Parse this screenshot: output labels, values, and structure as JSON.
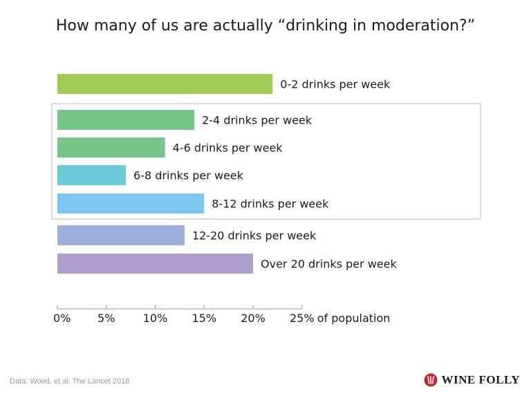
{
  "chart_data": {
    "type": "bar",
    "orientation": "horizontal",
    "title": "How many of us are actually “drinking in moderation?”",
    "categories": [
      "0-2 drinks per week",
      "2-4 drinks per week",
      "4-6 drinks per week",
      "6-8 drinks per week",
      "8-12 drinks per week",
      "12-20 drinks per week",
      "Over 20 drinks per week"
    ],
    "values": [
      22,
      14,
      11,
      7,
      15,
      13,
      20
    ],
    "colors": [
      "#a1cc55",
      "#77c58b",
      "#77c58b",
      "#6ccbd6",
      "#7cc6ef",
      "#9eb0de",
      "#ae9fcf"
    ],
    "xlim": [
      0,
      25
    ],
    "xticks": [
      0,
      5,
      10,
      15,
      20,
      25
    ],
    "xtick_labels": [
      "0%",
      "5%",
      "10%",
      "15%",
      "20%",
      "25%"
    ],
    "xlabel": "of population",
    "ylabel": "",
    "grid": false,
    "highlight_box_categories": [
      "2-4 drinks per week",
      "4-6 drinks per week",
      "6-8 drinks per week",
      "8-12 drinks per week"
    ],
    "source_note": "Data: Wood, et al. The Lancet 2018"
  },
  "brand": {
    "name": "WINE FOLLY",
    "logo_icon": "wine-folly-logo-icon",
    "logo_color": "#c0282d"
  }
}
